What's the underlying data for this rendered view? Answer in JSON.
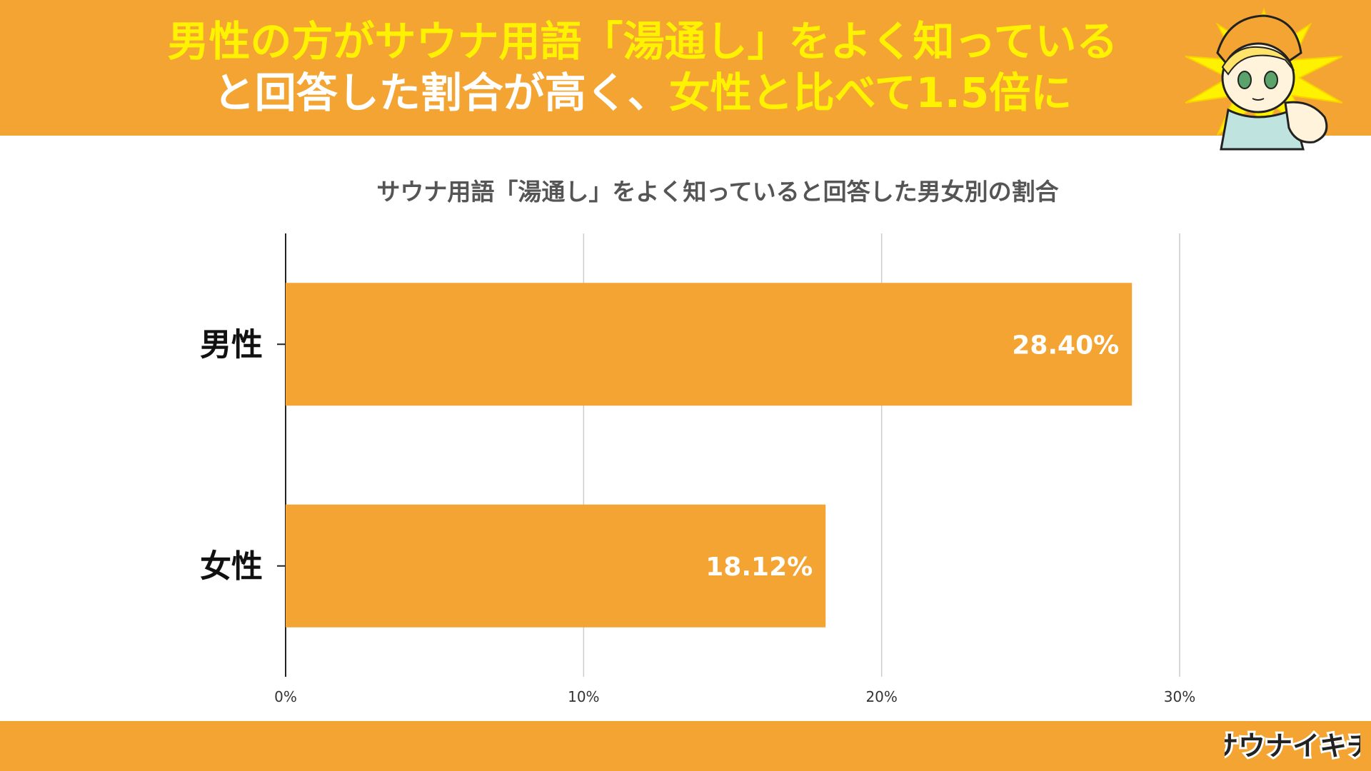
{
  "header": {
    "headline_line1": "男性の方がサウナ用語「湯通し」をよく知っている",
    "headline_line2_part1": "と回答した割合が高く、",
    "headline_line2_part2": "女性と比べて1.5倍に",
    "accent_yellow": "#fff200",
    "banner_color": "#f4a432"
  },
  "footer": {
    "logo_text": "サウナイキチ"
  },
  "chart_data": {
    "type": "bar",
    "orientation": "horizontal",
    "title": "サウナ用語「湯通し」をよく知っていると回答した男女別の割合",
    "categories": [
      "男性",
      "女性"
    ],
    "values": [
      28.4,
      18.12
    ],
    "value_labels": [
      "28.40%",
      "18.12%"
    ],
    "xlim": [
      0,
      30
    ],
    "x_ticks": [
      0,
      10,
      20,
      30
    ],
    "x_tick_labels": [
      "0%",
      "10%",
      "20%",
      "30%"
    ],
    "grid": true,
    "bar_color": "#f4a432",
    "grid_color": "#cccccc",
    "label_color": "#ffffff"
  }
}
